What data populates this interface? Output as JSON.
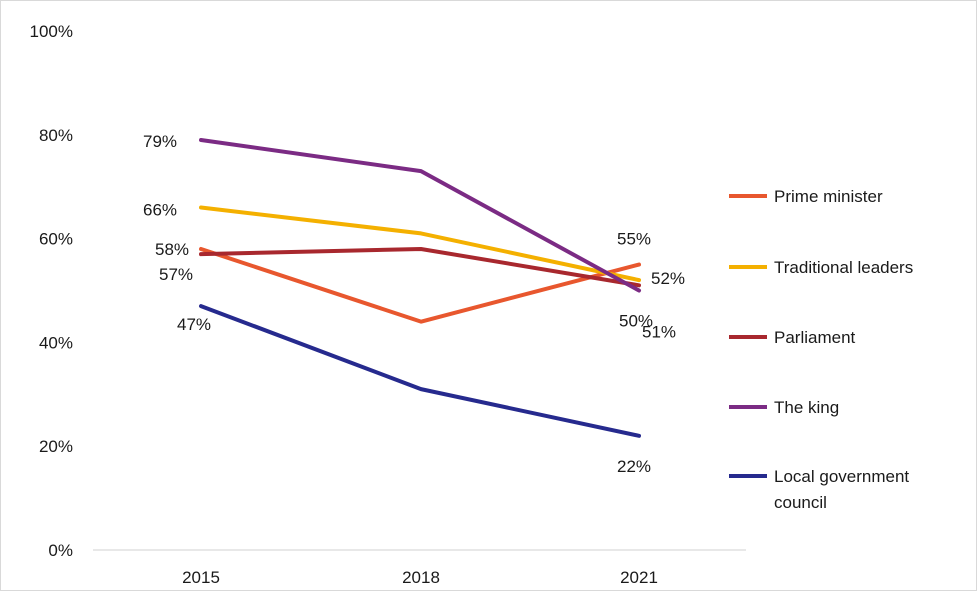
{
  "chart_data": {
    "type": "line",
    "title": "",
    "xlabel": "",
    "ylabel": "",
    "categories": [
      "2015",
      "2018",
      "2021"
    ],
    "ylim": [
      0,
      100
    ],
    "y_ticks": [
      "0%",
      "20%",
      "40%",
      "60%",
      "80%",
      "100%"
    ],
    "y_tick_values": [
      0,
      20,
      40,
      60,
      80,
      100
    ],
    "grid": false,
    "legend_position": "right",
    "series": [
      {
        "name": "Prime minister",
        "color": "#e8572e",
        "values": [
          58,
          44,
          55
        ],
        "labels": [
          "58%",
          "",
          "55%"
        ]
      },
      {
        "name": "Traditional leaders",
        "color": "#f4b000",
        "values": [
          66,
          61,
          52
        ],
        "labels": [
          "66%",
          "",
          "52%"
        ]
      },
      {
        "name": "Parliament",
        "color": "#a8282e",
        "values": [
          57,
          58,
          51
        ],
        "labels": [
          "57%",
          "",
          "51%"
        ]
      },
      {
        "name": "The king",
        "color": "#7b2b84",
        "values": [
          79,
          73,
          50
        ],
        "labels": [
          "79%",
          "",
          "50%"
        ]
      },
      {
        "name": "Local government council",
        "legend_lines": [
          "Local government",
          "council"
        ],
        "color": "#262a8e",
        "values": [
          47,
          31,
          22
        ],
        "labels": [
          "47%",
          "",
          "22%"
        ]
      }
    ]
  }
}
